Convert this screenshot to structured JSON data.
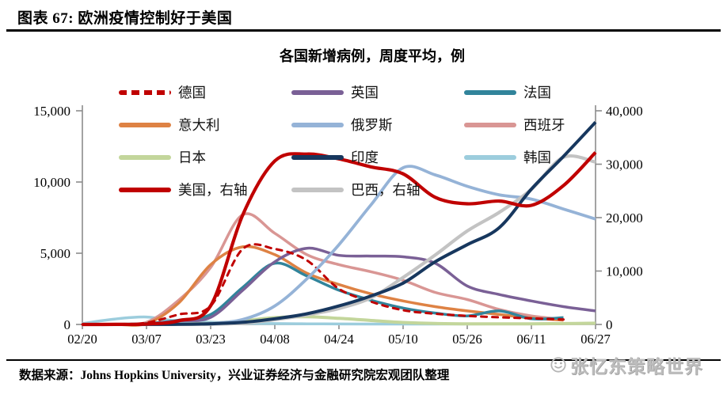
{
  "page": {
    "header_title": "图表 67: 欧洲疫情控制好于美国",
    "source_text": "数据来源：Johns Hopkins University，兴业证券经济与金融研究院宏观团队整理",
    "watermark_text": "张忆东策略世界"
  },
  "chart_data": {
    "type": "line",
    "title": "各国新增病例，周度平均，例",
    "x": [
      "02/20",
      "02/28",
      "03/07",
      "03/15",
      "03/23",
      "03/31",
      "04/08",
      "04/16",
      "04/24",
      "05/02",
      "05/10",
      "05/18",
      "05/26",
      "06/03",
      "06/11",
      "06/19",
      "06/27"
    ],
    "x_tick_labels": [
      "02/20",
      "03/07",
      "03/23",
      "04/08",
      "04/24",
      "05/10",
      "05/26",
      "06/11",
      "06/27"
    ],
    "left_axis": {
      "ticks": [
        "0",
        "5,000",
        "10,000",
        "15,000"
      ],
      "range": [
        0,
        15000
      ]
    },
    "right_axis": {
      "ticks": [
        "0",
        "10,000",
        "20,000",
        "30,000",
        "40,000"
      ],
      "range": [
        0,
        40000
      ]
    },
    "legend": {
      "position": "top-overlay",
      "columns": 3
    },
    "axis_color": "#8c8c8c",
    "series": [
      {
        "name": "德国",
        "axis": "left",
        "color": "#C00000",
        "dashed": true,
        "width": 3,
        "values": [
          0,
          20,
          120,
          700,
          1300,
          5300,
          5300,
          4500,
          2500,
          1600,
          1000,
          750,
          600,
          500,
          430,
          350,
          null
        ]
      },
      {
        "name": "英国",
        "axis": "left",
        "color": "#7A6096",
        "dashed": false,
        "width": 3.5,
        "values": [
          0,
          5,
          30,
          250,
          500,
          2400,
          4400,
          5350,
          4850,
          4800,
          4750,
          4300,
          2700,
          2100,
          1650,
          1250,
          950
        ]
      },
      {
        "name": "法国",
        "axis": "left",
        "color": "#31849B",
        "dashed": false,
        "width": 3.5,
        "values": [
          0,
          10,
          60,
          300,
          700,
          2600,
          4300,
          3400,
          2400,
          1700,
          1150,
          800,
          600,
          950,
          400,
          480,
          null
        ]
      },
      {
        "name": "意大利",
        "axis": "left",
        "color": "#DE8244",
        "dashed": false,
        "width": 3.5,
        "values": [
          0,
          5,
          60,
          1500,
          4200,
          5450,
          4900,
          3600,
          2800,
          2150,
          1650,
          1250,
          950,
          700,
          450,
          300,
          null
        ]
      },
      {
        "name": "俄罗斯",
        "axis": "left",
        "color": "#95B3D7",
        "dashed": false,
        "width": 3.8,
        "values": [
          0,
          0,
          5,
          20,
          80,
          350,
          1300,
          3200,
          5600,
          8400,
          11000,
          10500,
          9700,
          9100,
          8800,
          8100,
          7400
        ]
      },
      {
        "name": "西班牙",
        "axis": "left",
        "color": "#D99694",
        "dashed": false,
        "width": 3.5,
        "values": [
          0,
          15,
          150,
          1700,
          4000,
          7700,
          6400,
          4900,
          4200,
          3700,
          3100,
          2250,
          1750,
          1050,
          600,
          350,
          null
        ]
      },
      {
        "name": "日本",
        "axis": "left",
        "color": "#C3D69B",
        "dashed": false,
        "width": 4,
        "values": [
          0,
          0,
          5,
          25,
          80,
          250,
          480,
          540,
          430,
          280,
          140,
          70,
          45,
          40,
          45,
          60,
          90
        ]
      },
      {
        "name": "印度",
        "axis": "left",
        "color": "#17375E",
        "dashed": false,
        "width": 4,
        "values": [
          0,
          0,
          5,
          15,
          50,
          150,
          400,
          750,
          1300,
          2000,
          2900,
          4400,
          5600,
          6800,
          9500,
          11800,
          14200
        ]
      },
      {
        "name": "韩国",
        "axis": "left",
        "color": "#9CCDDD",
        "dashed": false,
        "width": 3.5,
        "values": [
          60,
          380,
          520,
          220,
          160,
          90,
          60,
          45,
          35,
          30,
          30,
          30,
          35,
          40,
          45,
          55,
          null
        ]
      },
      {
        "name": "美国，右轴",
        "axis": "right",
        "color": "#C00000",
        "dashed": false,
        "width": 4.2,
        "values": [
          0,
          10,
          80,
          700,
          3500,
          20500,
          30600,
          31900,
          31000,
          29500,
          28200,
          23800,
          22600,
          23100,
          22300,
          26000,
          32200
        ]
      },
      {
        "name": "巴西，右轴",
        "axis": "right",
        "color": "#C3C3C3",
        "dashed": false,
        "width": 4.2,
        "values": [
          0,
          0,
          0,
          10,
          50,
          250,
          900,
          1800,
          3000,
          5000,
          8800,
          13000,
          17500,
          21000,
          25300,
          31300,
          30400
        ]
      }
    ]
  }
}
